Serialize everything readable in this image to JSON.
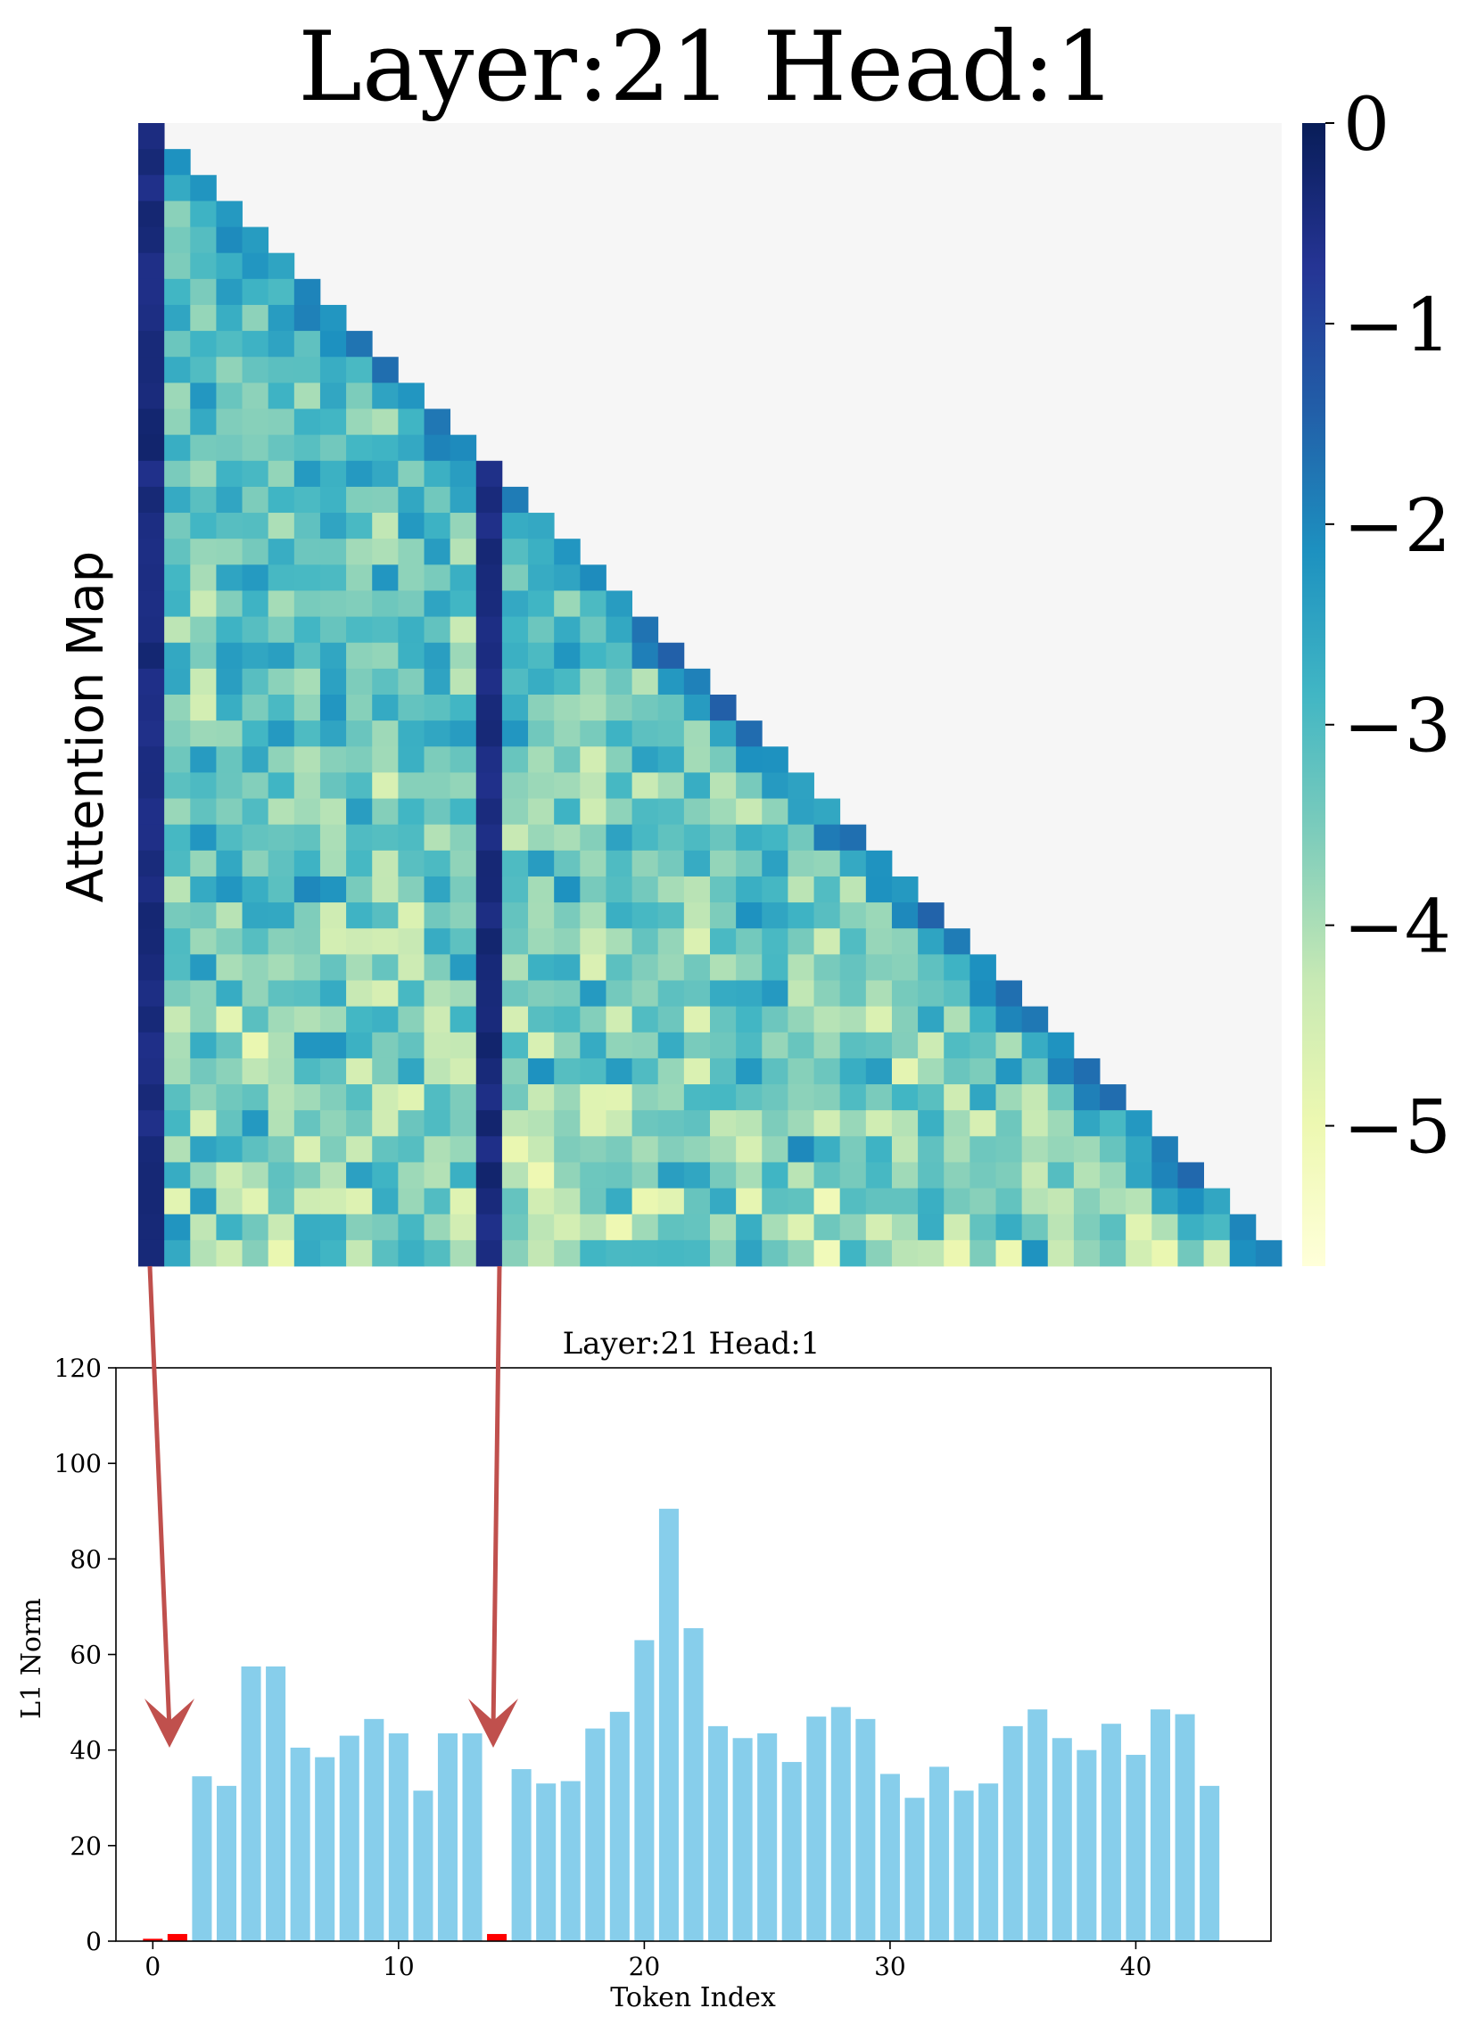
{
  "heatmap": {
    "title": "Layer:21 Head:1",
    "ylabel": "Attention Map",
    "type": "heatmap",
    "colormap": "YlGnBu_r",
    "colorbar": {
      "range": [
        -5.7,
        0
      ],
      "ticks": [
        0,
        -1,
        -2,
        -3,
        -4,
        -5
      ],
      "tick_labels": [
        "0",
        "−1",
        "−2",
        "−3",
        "−4",
        "−5"
      ]
    },
    "n_tokens": 44,
    "sink_columns": [
      0,
      13
    ],
    "masked_color": "#f6f6f6"
  },
  "chart_data": {
    "type": "bar",
    "title": "Layer:21 Head:1",
    "xlabel": "Token Index",
    "ylabel": "L1 Norm",
    "x": [
      0,
      1,
      2,
      3,
      4,
      5,
      6,
      7,
      8,
      9,
      10,
      11,
      12,
      13,
      14,
      15,
      16,
      17,
      18,
      19,
      20,
      21,
      22,
      23,
      24,
      25,
      26,
      27,
      28,
      29,
      30,
      31,
      32,
      33,
      34,
      35,
      36,
      37,
      38,
      39,
      40,
      41,
      42,
      43
    ],
    "values": [
      0.5,
      1.5,
      34.5,
      32.5,
      57.5,
      57.5,
      40.5,
      38.5,
      43,
      46.5,
      43.5,
      31.5,
      43.5,
      43.5,
      1.5,
      36,
      33,
      33.5,
      44.5,
      48,
      63,
      90.5,
      65.5,
      45,
      42.5,
      43.5,
      37.5,
      47,
      49,
      46.5,
      35,
      30,
      36.5,
      31.5,
      33,
      45,
      48.5,
      42.5,
      40,
      45.5,
      39,
      48.5,
      47.5,
      32.5
    ],
    "highlight_indices": [
      0,
      1,
      14
    ],
    "xlim": [
      -1.5,
      45.5
    ],
    "ylim": [
      0,
      120
    ],
    "xticks": [
      0,
      10,
      20,
      30,
      40
    ],
    "yticks": [
      0,
      20,
      40,
      60,
      80,
      100,
      120
    ],
    "bar_color": "#87ceeb",
    "highlight_color": "#ff0000",
    "arrow_color": "#c0504d",
    "grid": false
  }
}
